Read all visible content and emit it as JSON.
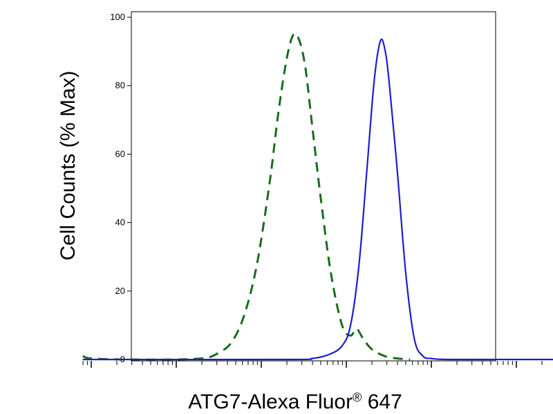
{
  "chart_data": {
    "type": "line",
    "xlabel": "ATG7-Alexa Fluor® 647",
    "xlabel_main": "ATG7-Alexa Fluor",
    "xlabel_mark": "®",
    "xlabel_suffix": " 647",
    "ylabel": "Cell Counts (% Max)",
    "x_scale": "log",
    "x_tick_labels_shown": false,
    "ylim": [
      0,
      100
    ],
    "yticks": [
      0,
      20,
      40,
      60,
      80,
      100
    ],
    "ytick_labels": [
      "0",
      "20",
      "40",
      "60",
      "80",
      "100"
    ],
    "legend": "none",
    "grid": false,
    "series": [
      {
        "color": "#1a6b1a",
        "style": "dashed",
        "points": [
          [
            -1.1,
            1
          ],
          [
            -1.0,
            0.3
          ],
          [
            -0.6,
            0
          ],
          [
            0.0,
            0
          ],
          [
            0.35,
            0.5
          ],
          [
            0.5,
            2
          ],
          [
            0.65,
            5
          ],
          [
            0.8,
            13
          ],
          [
            0.95,
            28
          ],
          [
            1.1,
            52
          ],
          [
            1.2,
            72
          ],
          [
            1.3,
            88
          ],
          [
            1.38,
            95
          ],
          [
            1.45,
            93
          ],
          [
            1.52,
            85
          ],
          [
            1.6,
            68
          ],
          [
            1.7,
            47
          ],
          [
            1.82,
            25
          ],
          [
            1.95,
            10
          ],
          [
            2.05,
            7
          ],
          [
            2.12,
            9
          ],
          [
            2.2,
            6
          ],
          [
            2.3,
            3
          ],
          [
            2.45,
            1
          ],
          [
            2.6,
            0.3
          ],
          [
            2.75,
            0
          ]
        ]
      },
      {
        "color": "#1c1ccc",
        "style": "solid",
        "points": [
          [
            -1.1,
            0
          ],
          [
            1.3,
            0
          ],
          [
            1.6,
            0.3
          ],
          [
            1.8,
            1.5
          ],
          [
            1.95,
            4
          ],
          [
            2.05,
            10
          ],
          [
            2.15,
            28
          ],
          [
            2.25,
            58
          ],
          [
            2.33,
            82
          ],
          [
            2.4,
            93
          ],
          [
            2.45,
            91
          ],
          [
            2.5,
            82
          ],
          [
            2.6,
            55
          ],
          [
            2.7,
            25
          ],
          [
            2.8,
            6
          ],
          [
            2.9,
            1
          ],
          [
            3.0,
            0.3
          ],
          [
            3.2,
            0
          ],
          [
            4.0,
            0
          ],
          [
            5.2,
            0
          ]
        ]
      }
    ]
  }
}
